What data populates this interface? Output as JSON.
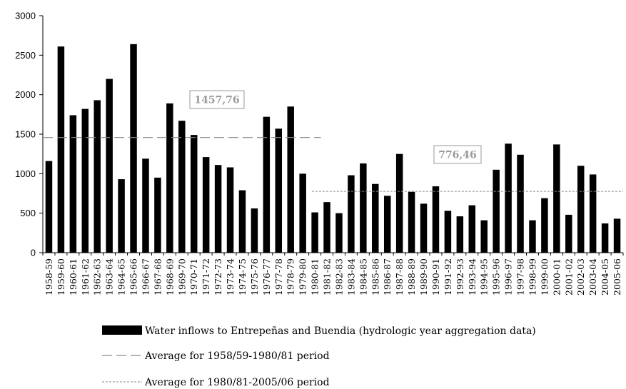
{
  "chart_data": {
    "type": "bar",
    "categories": [
      "1958-59",
      "1959-60",
      "1960-61",
      "1961-62",
      "1962-63",
      "1963-64",
      "1964-65",
      "1965-66",
      "1966-67",
      "1967-68",
      "1968-69",
      "1969-70",
      "1970-71",
      "1971-72",
      "1972-73",
      "1973-74",
      "1974-75",
      "1975-76",
      "1976-77",
      "1977-78",
      "1978-79",
      "1979-80",
      "1980-81",
      "1981-82",
      "1982-83",
      "1983-84",
      "1984-85",
      "1985-86",
      "1986-87",
      "1987-88",
      "1988-89",
      "1989-90",
      "1990-91",
      "1991-92",
      "1992-93",
      "1993-94",
      "1994-95",
      "1995-96",
      "1996-97",
      "1997-98",
      "1998-99",
      "1999-00",
      "2000-01",
      "2001-02",
      "2002-03",
      "2003-04",
      "2004-05",
      "2005-06"
    ],
    "series": [
      {
        "name": "Water inflows to Entrepeñas and Buendia (hydrologic year aggregation data)",
        "color": "#000000",
        "values": [
          1160,
          2610,
          1740,
          1820,
          1930,
          2200,
          930,
          2640,
          1190,
          950,
          1890,
          1670,
          1490,
          1210,
          1110,
          1080,
          790,
          560,
          1720,
          1570,
          1850,
          1000,
          510,
          640,
          500,
          980,
          1130,
          870,
          720,
          1250,
          770,
          620,
          840,
          530,
          460,
          600,
          410,
          1050,
          1380,
          1240,
          410,
          690,
          1370,
          480,
          1100,
          990,
          370,
          430
        ]
      }
    ],
    "averages": [
      {
        "name": "Average for 1958/59-1980/81 period",
        "value": 1457.76,
        "label": "1457,76",
        "style": "long-dash",
        "from": "1958-59",
        "to": "1980-81"
      },
      {
        "name": "Average for 1980/81-2005/06 period",
        "value": 776.46,
        "label": "776,46",
        "style": "short-dash",
        "from": "1980-81",
        "to": "2005-06"
      }
    ],
    "ylim": [
      0,
      3000
    ],
    "yticks": [
      0,
      500,
      1000,
      1500,
      2000,
      2500,
      3000
    ],
    "ytick_labels": [
      "0",
      "500",
      "1000",
      "1500",
      "2000",
      "2500",
      "3000"
    ],
    "grid": false,
    "legend_position": "bottom",
    "xlabel": "",
    "ylabel": ""
  }
}
